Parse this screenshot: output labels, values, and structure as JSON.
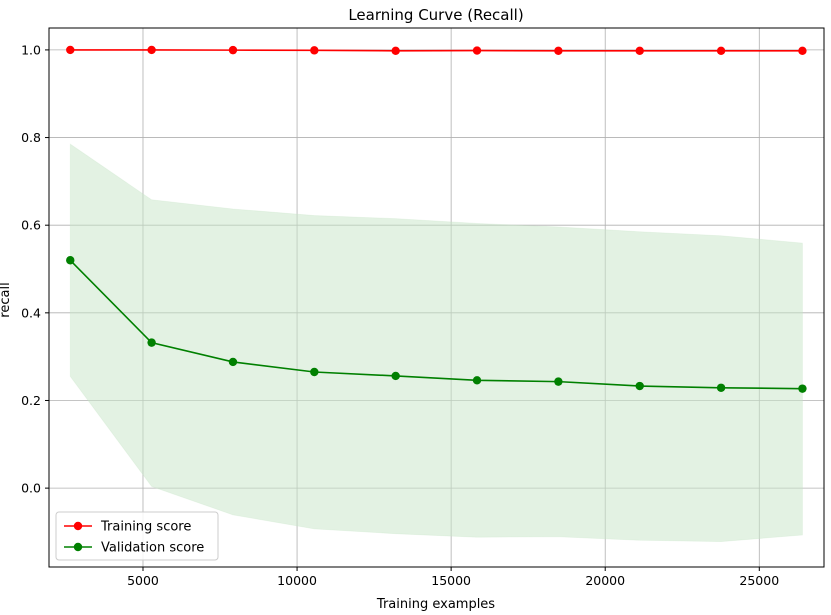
{
  "chart_data": {
    "type": "line",
    "title": "Learning Curve (Recall)",
    "xlabel": "Training examples",
    "ylabel": "recall",
    "xlim": [
      1950,
      27100
    ],
    "ylim": [
      -0.18,
      1.05
    ],
    "grid": true,
    "legend_position": "lower-left",
    "x_ticks": [
      5000,
      10000,
      15000,
      20000,
      25000
    ],
    "x_tick_labels": [
      "5000",
      "10000",
      "15000",
      "20000",
      "25000"
    ],
    "y_ticks": [
      0.0,
      0.2,
      0.4,
      0.6,
      0.8,
      1.0
    ],
    "y_tick_labels": [
      "0.0",
      "0.2",
      "0.4",
      "0.6",
      "0.8",
      "1.0"
    ],
    "x": [
      2640,
      5280,
      7920,
      10560,
      13200,
      15840,
      18480,
      21120,
      23760,
      26400
    ],
    "series": [
      {
        "name": "Training score",
        "color": "#ff0000",
        "marker": "circle",
        "values": [
          1.0,
          1.0,
          0.9995,
          0.999,
          0.998,
          0.9985,
          0.998,
          0.998,
          0.998,
          0.998
        ],
        "band_lower": [
          1.0,
          1.0,
          0.9995,
          0.999,
          0.998,
          0.9985,
          0.998,
          0.998,
          0.998,
          0.998
        ],
        "band_upper": [
          1.0,
          1.0,
          0.9995,
          0.999,
          0.998,
          0.9985,
          0.998,
          0.998,
          0.998,
          0.998
        ]
      },
      {
        "name": "Validation score",
        "color": "#008000",
        "band_color": "#c8e6c8",
        "marker": "circle",
        "values": [
          0.52,
          0.332,
          0.288,
          0.265,
          0.256,
          0.246,
          0.243,
          0.233,
          0.229,
          0.227
        ],
        "band_lower": [
          0.255,
          0.004,
          -0.061,
          -0.093,
          -0.104,
          -0.112,
          -0.111,
          -0.119,
          -0.122,
          -0.107
        ],
        "band_upper": [
          0.785,
          0.658,
          0.637,
          0.622,
          0.615,
          0.604,
          0.596,
          0.585,
          0.576,
          0.559
        ]
      }
    ]
  }
}
